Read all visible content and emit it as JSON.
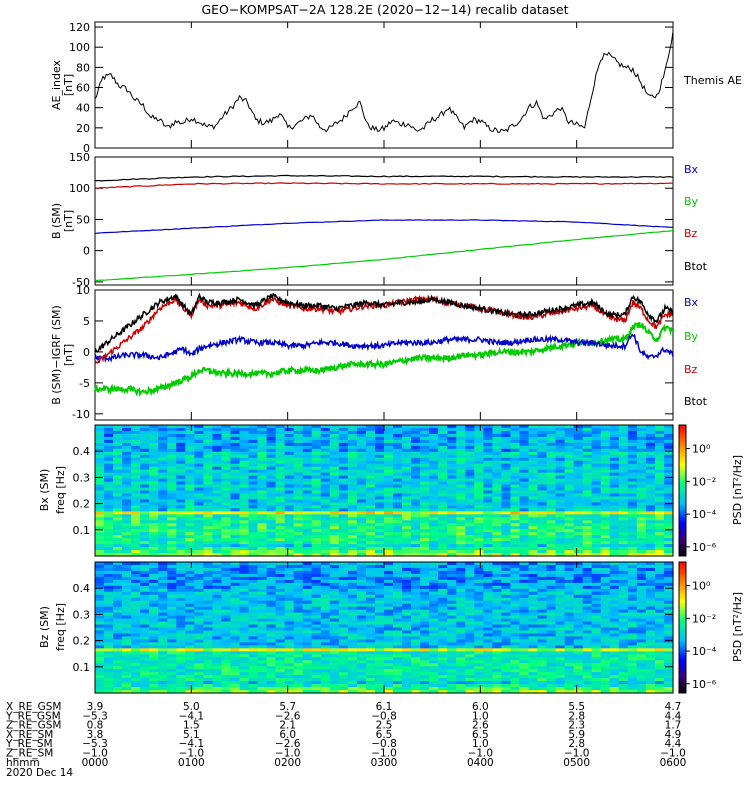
{
  "title": "GEO−KOMPSAT−2A 128.2E (2020−12−14) recalib dataset",
  "chart_data": [
    {
      "panel": "ae",
      "type": "line",
      "ylabel": [
        "AE_index",
        "[nT]"
      ],
      "ylim": [
        0,
        125
      ],
      "yticks": [
        0,
        20,
        40,
        60,
        80,
        100,
        120
      ],
      "legend": [
        {
          "label": "Themis AE",
          "color": "#000000"
        }
      ],
      "xlim": [
        0,
        360
      ],
      "series": [
        {
          "name": "Themis AE",
          "color": "#000000",
          "x": [
            0,
            5,
            10,
            15,
            20,
            25,
            30,
            35,
            40,
            45,
            50,
            55,
            60,
            65,
            70,
            75,
            80,
            85,
            90,
            95,
            100,
            105,
            110,
            115,
            120,
            125,
            130,
            135,
            140,
            145,
            150,
            155,
            160,
            165,
            170,
            175,
            180,
            185,
            190,
            195,
            200,
            205,
            210,
            215,
            220,
            225,
            230,
            235,
            240,
            245,
            250,
            255,
            260,
            265,
            270,
            275,
            280,
            285,
            290,
            295,
            300,
            305,
            310,
            315,
            320,
            325,
            330,
            335,
            340,
            345,
            350,
            355,
            360
          ],
          "values": [
            48,
            70,
            72,
            62,
            58,
            48,
            42,
            30,
            28,
            20,
            26,
            25,
            30,
            26,
            21,
            22,
            32,
            40,
            50,
            45,
            28,
            25,
            27,
            35,
            20,
            23,
            28,
            33,
            21,
            18,
            24,
            30,
            40,
            45,
            22,
            18,
            19,
            27,
            24,
            24,
            17,
            20,
            28,
            32,
            40,
            30,
            20,
            28,
            27,
            20,
            17,
            16,
            22,
            28,
            40,
            45,
            28,
            34,
            40,
            26,
            23,
            20,
            58,
            90,
            92,
            85,
            80,
            78,
            65,
            50,
            52,
            75,
            115
          ]
        }
      ]
    },
    {
      "panel": "b_sm",
      "type": "line",
      "ylabel": [
        "B (SM)",
        "[nT]"
      ],
      "ylim": [
        -55,
        150
      ],
      "yticks": [
        -50,
        0,
        50,
        100,
        150
      ],
      "xlim": [
        0,
        360
      ],
      "legend": [
        {
          "label": "Bx",
          "color": "#0000cc"
        },
        {
          "label": "By",
          "color": "#00cc00"
        },
        {
          "label": "Bz",
          "color": "#cc0000"
        },
        {
          "label": "Btot",
          "color": "#000000"
        }
      ],
      "series": [
        {
          "name": "Btot",
          "color": "#000000",
          "x": [
            0,
            60,
            120,
            180,
            240,
            300,
            360
          ],
          "values": [
            112,
            118,
            120,
            119,
            119,
            118,
            118
          ]
        },
        {
          "name": "Bz",
          "color": "#cc0000",
          "x": [
            0,
            60,
            120,
            180,
            240,
            300,
            360
          ],
          "values": [
            100,
            107,
            108,
            107,
            107,
            107,
            108
          ]
        },
        {
          "name": "Bx",
          "color": "#0000cc",
          "x": [
            0,
            60,
            120,
            180,
            240,
            300,
            360
          ],
          "values": [
            28,
            36,
            44,
            49,
            49,
            46,
            37
          ]
        },
        {
          "name": "By",
          "color": "#00cc00",
          "x": [
            0,
            60,
            120,
            180,
            240,
            300,
            360
          ],
          "values": [
            -48,
            -38,
            -27,
            -14,
            2,
            18,
            32
          ]
        }
      ]
    },
    {
      "panel": "b_minus_igrf",
      "type": "line",
      "ylabel": [
        "B (SM)−IGRF (SM)",
        "[nT]"
      ],
      "ylim": [
        -11,
        10
      ],
      "yticks": [
        -10,
        -5,
        0,
        5,
        10
      ],
      "xlim": [
        0,
        360
      ],
      "legend": [
        {
          "label": "Bx",
          "color": "#0000cc"
        },
        {
          "label": "By",
          "color": "#00cc00"
        },
        {
          "label": "Bz",
          "color": "#cc0000"
        },
        {
          "label": "Btot",
          "color": "#000000"
        }
      ],
      "series": [
        {
          "name": "Btot",
          "color": "#000000",
          "x": [
            0,
            10,
            20,
            30,
            40,
            50,
            55,
            60,
            65,
            70,
            80,
            90,
            100,
            110,
            120,
            130,
            140,
            150,
            160,
            170,
            180,
            190,
            200,
            210,
            220,
            230,
            240,
            250,
            260,
            270,
            280,
            290,
            300,
            310,
            320,
            330,
            335,
            340,
            345,
            350,
            355,
            360
          ],
          "values": [
            0,
            2,
            4,
            6,
            8,
            9,
            7.5,
            6,
            9,
            8,
            8,
            8.5,
            7.5,
            9,
            8,
            7.5,
            7.5,
            7,
            7.5,
            8,
            7.5,
            8,
            8,
            8.5,
            8,
            7.5,
            7,
            6.5,
            6,
            6,
            6.5,
            7,
            7.5,
            8,
            6,
            6,
            9,
            8,
            6,
            5,
            7,
            6.5
          ]
        },
        {
          "name": "Bz",
          "color": "#cc0000",
          "x": [
            0,
            10,
            20,
            30,
            40,
            50,
            55,
            60,
            65,
            70,
            80,
            90,
            100,
            110,
            120,
            130,
            140,
            150,
            160,
            170,
            180,
            190,
            200,
            210,
            220,
            230,
            240,
            250,
            260,
            270,
            280,
            290,
            300,
            310,
            320,
            330,
            335,
            340,
            345,
            350,
            355,
            360
          ],
          "values": [
            -2,
            0,
            2,
            4,
            7,
            8.5,
            7,
            6,
            8.5,
            7.5,
            7.5,
            8,
            7,
            8.5,
            7.5,
            7,
            7,
            6.5,
            7,
            7.5,
            7.5,
            8,
            8.5,
            8.5,
            8,
            7.5,
            7,
            6.5,
            6,
            5.5,
            6,
            6.5,
            7,
            7.5,
            5.5,
            5,
            8,
            7,
            5,
            4,
            6,
            6
          ]
        },
        {
          "name": "Bx",
          "color": "#0000cc",
          "x": [
            0,
            10,
            20,
            30,
            40,
            50,
            55,
            60,
            65,
            70,
            80,
            90,
            100,
            110,
            120,
            130,
            140,
            150,
            160,
            170,
            180,
            190,
            200,
            210,
            220,
            230,
            240,
            250,
            260,
            270,
            280,
            290,
            300,
            310,
            320,
            330,
            335,
            340,
            345,
            350,
            355,
            360
          ],
          "values": [
            -1,
            -1,
            -0.5,
            -0.5,
            -1,
            0,
            0.5,
            -0.5,
            0.5,
            1,
            1.5,
            2,
            1.5,
            1.5,
            1,
            1,
            1.5,
            1.5,
            1,
            1,
            1,
            1.5,
            1.5,
            1.5,
            2,
            2,
            2,
            1.5,
            1.5,
            2,
            2,
            2,
            1.5,
            1.5,
            1,
            1,
            3,
            0,
            -1,
            -0.5,
            0.5,
            -0.5
          ]
        },
        {
          "name": "By",
          "color": "#00cc00",
          "x": [
            0,
            10,
            20,
            30,
            40,
            50,
            55,
            60,
            65,
            70,
            80,
            90,
            100,
            110,
            120,
            130,
            140,
            150,
            160,
            170,
            180,
            190,
            200,
            210,
            220,
            230,
            240,
            250,
            260,
            270,
            280,
            290,
            300,
            310,
            320,
            330,
            335,
            340,
            345,
            350,
            355,
            360
          ],
          "values": [
            -6,
            -6,
            -6,
            -6.5,
            -6,
            -5,
            -4.5,
            -4,
            -3,
            -3,
            -3.5,
            -3.5,
            -3.5,
            -3.5,
            -3,
            -3,
            -3,
            -2.5,
            -2,
            -2,
            -2,
            -1.5,
            -1,
            -1,
            -1,
            -0.5,
            -0.5,
            0,
            0,
            0,
            0.5,
            1,
            1.5,
            1.5,
            2,
            2,
            4,
            4.5,
            3,
            2,
            4,
            3.5
          ]
        }
      ]
    },
    {
      "panel": "spec_bx",
      "type": "heatmap",
      "ylabel": [
        "Bx (SM)",
        "freq [Hz]"
      ],
      "ylim": [
        0,
        0.5
      ],
      "yticks": [
        0.1,
        0.2,
        0.3,
        0.4
      ],
      "xlim": [
        0,
        360
      ],
      "colorbar": {
        "label": "PSD [nT²/Hz]",
        "ticks": [
          "10⁰",
          "10⁻²",
          "10⁻⁴",
          "10⁻⁶"
        ]
      }
    },
    {
      "panel": "spec_bz",
      "type": "heatmap",
      "ylabel": [
        "Bz (SM)",
        "freq [Hz]"
      ],
      "ylim": [
        0,
        0.5
      ],
      "yticks": [
        0.1,
        0.2,
        0.3,
        0.4
      ],
      "xlim": [
        0,
        360
      ],
      "colorbar": {
        "label": "PSD [nT²/Hz]",
        "ticks": [
          "10⁰",
          "10⁻²",
          "10⁻⁴",
          "10⁻⁶"
        ]
      }
    }
  ],
  "orbit_table": {
    "rows": [
      {
        "label": "X_RE_GSM",
        "values": [
          "3.9",
          "5.0",
          "5.7",
          "6.1",
          "6.0",
          "5.5",
          "4.7"
        ]
      },
      {
        "label": "Y_RE_GSM",
        "values": [
          "−5.3",
          "−4.1",
          "−2.6",
          "−0.8",
          "1.0",
          "2.8",
          "4.4"
        ]
      },
      {
        "label": "Z_RE_GSM",
        "values": [
          "0.8",
          "1.5",
          "2.1",
          "2.5",
          "2.6",
          "2.3",
          "1.7"
        ]
      },
      {
        "label": "X_RE_SM",
        "values": [
          "3.8",
          "5.1",
          "6.0",
          "6.5",
          "6.5",
          "5.9",
          "4.9"
        ]
      },
      {
        "label": "Y_RE_SM",
        "values": [
          "−5.3",
          "−4.1",
          "−2.6",
          "−0.8",
          "1.0",
          "2.8",
          "4.4"
        ]
      },
      {
        "label": "Z_RE_SM",
        "values": [
          "−1.0",
          "−1.0",
          "−1.0",
          "−1.0",
          "−1.0",
          "−1.0",
          "−1.0"
        ]
      },
      {
        "label": "hhmm",
        "values": [
          "0000",
          "0100",
          "0200",
          "0300",
          "0400",
          "0500",
          "0600"
        ]
      }
    ],
    "date": "2020 Dec 14"
  }
}
